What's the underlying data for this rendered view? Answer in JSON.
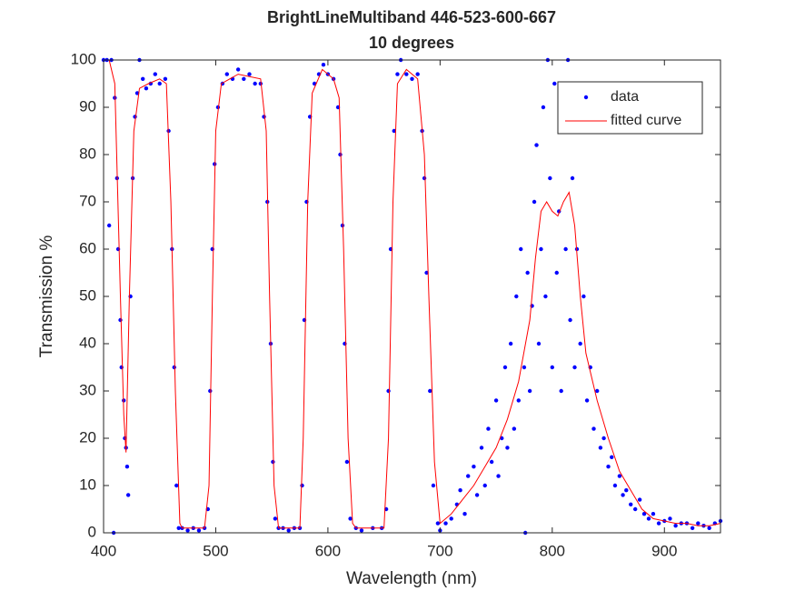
{
  "chart_data": {
    "type": "scatter",
    "title": "BrightLineMultiband 446-523-600-667",
    "subtitle": "10 degrees",
    "x_label": "Wavelength (nm)",
    "y_label": "Transmission %",
    "xlim": [
      400,
      950
    ],
    "ylim": [
      0,
      100
    ],
    "xticks": [
      400,
      500,
      600,
      700,
      800,
      900
    ],
    "yticks": [
      0,
      10,
      20,
      30,
      40,
      50,
      60,
      70,
      80,
      90,
      100
    ],
    "legend": "northeast",
    "series": [
      {
        "name": "data",
        "type": "scatter",
        "color": "#0000ff",
        "x": [
          400,
          403,
          405,
          407,
          409,
          410,
          412,
          413,
          415,
          416,
          418,
          419,
          420,
          421,
          422,
          424,
          426,
          428,
          430,
          432,
          435,
          438,
          442,
          446,
          450,
          455,
          458,
          461,
          463,
          465,
          467,
          470,
          475,
          480,
          485,
          490,
          493,
          495,
          497,
          499,
          502,
          506,
          510,
          515,
          520,
          525,
          530,
          535,
          540,
          543,
          546,
          549,
          551,
          553,
          556,
          560,
          565,
          570,
          575,
          577,
          579,
          581,
          584,
          588,
          592,
          596,
          600,
          605,
          609,
          611,
          613,
          615,
          617,
          620,
          625,
          630,
          640,
          648,
          652,
          654,
          656,
          659,
          662,
          665,
          670,
          675,
          680,
          684,
          686,
          688,
          691,
          694,
          698,
          700,
          705,
          710,
          715,
          718,
          722,
          725,
          730,
          733,
          737,
          740,
          743,
          746,
          750,
          752,
          755,
          758,
          760,
          763,
          766,
          768,
          770,
          772,
          775,
          776,
          778,
          780,
          782,
          784,
          786,
          788,
          790,
          792,
          794,
          796,
          798,
          800,
          802,
          804,
          806,
          808,
          810,
          812,
          814,
          816,
          818,
          820,
          822,
          825,
          828,
          831,
          834,
          837,
          840,
          843,
          846,
          850,
          853,
          856,
          860,
          863,
          866,
          870,
          874,
          878,
          882,
          886,
          890,
          895,
          900,
          905,
          910,
          915,
          920,
          925,
          930,
          935,
          940,
          945,
          950
        ],
        "values": [
          100,
          100,
          65,
          100,
          0,
          92,
          75,
          60,
          45,
          35,
          28,
          20,
          18,
          14,
          8,
          50,
          75,
          88,
          93,
          100,
          96,
          94,
          95,
          97,
          95,
          96,
          85,
          60,
          35,
          10,
          1,
          1,
          0.5,
          1,
          0.5,
          1,
          5,
          30,
          60,
          78,
          90,
          95,
          97,
          96,
          98,
          96,
          97,
          95,
          95,
          88,
          70,
          40,
          15,
          3,
          1,
          1,
          0.5,
          1,
          1,
          10,
          45,
          70,
          88,
          95,
          97,
          99,
          97,
          96,
          90,
          80,
          65,
          40,
          15,
          3,
          1,
          0.5,
          1,
          1,
          5,
          30,
          60,
          85,
          97,
          100,
          97,
          96,
          97,
          85,
          75,
          55,
          30,
          10,
          2,
          0.5,
          2,
          3,
          6,
          9,
          4,
          12,
          14,
          8,
          18,
          10,
          22,
          15,
          28,
          12,
          20,
          35,
          18,
          40,
          22,
          50,
          28,
          60,
          35,
          0,
          55,
          30,
          48,
          70,
          82,
          40,
          60,
          90,
          50,
          100,
          75,
          35,
          95,
          55,
          68,
          30,
          85,
          60,
          100,
          45,
          75,
          35,
          60,
          40,
          50,
          28,
          35,
          22,
          30,
          18,
          20,
          14,
          16,
          10,
          12,
          8,
          9,
          6,
          5,
          7,
          4,
          3,
          4,
          2,
          2.5,
          3,
          1.5,
          2,
          2,
          1,
          2,
          1.5,
          1,
          2,
          2.5
        ]
      },
      {
        "name": "fitted curve",
        "type": "line",
        "color": "#ff0000",
        "x": [
          400,
          405,
          410,
          415,
          418,
          420,
          423,
          427,
          432,
          440,
          450,
          456,
          460,
          464,
          468,
          470,
          490,
          494,
          497,
          500,
          505,
          520,
          540,
          545,
          548,
          552,
          556,
          575,
          578,
          582,
          586,
          595,
          605,
          610,
          614,
          618,
          622,
          625,
          650,
          654,
          658,
          662,
          670,
          680,
          686,
          690,
          695,
          700,
          710,
          720,
          730,
          740,
          750,
          760,
          770,
          780,
          785,
          790,
          795,
          800,
          805,
          810,
          815,
          820,
          825,
          830,
          840,
          850,
          860,
          870,
          880,
          890,
          900,
          910,
          920,
          930,
          940,
          950
        ],
        "values": [
          100,
          100,
          95,
          50,
          25,
          17,
          50,
          85,
          94,
          95,
          96,
          95,
          70,
          30,
          2,
          1,
          1,
          10,
          50,
          85,
          95,
          97,
          96,
          85,
          50,
          10,
          1,
          1,
          20,
          70,
          93,
          98,
          96,
          92,
          60,
          20,
          2,
          1,
          1,
          20,
          70,
          95,
          98,
          96,
          80,
          50,
          15,
          2,
          4,
          7,
          10,
          14,
          18,
          24,
          32,
          45,
          58,
          68,
          70,
          68,
          67,
          70,
          72,
          65,
          50,
          38,
          28,
          20,
          13,
          9,
          5,
          3,
          2.5,
          2,
          2,
          1.5,
          1.5,
          2
        ]
      }
    ]
  }
}
